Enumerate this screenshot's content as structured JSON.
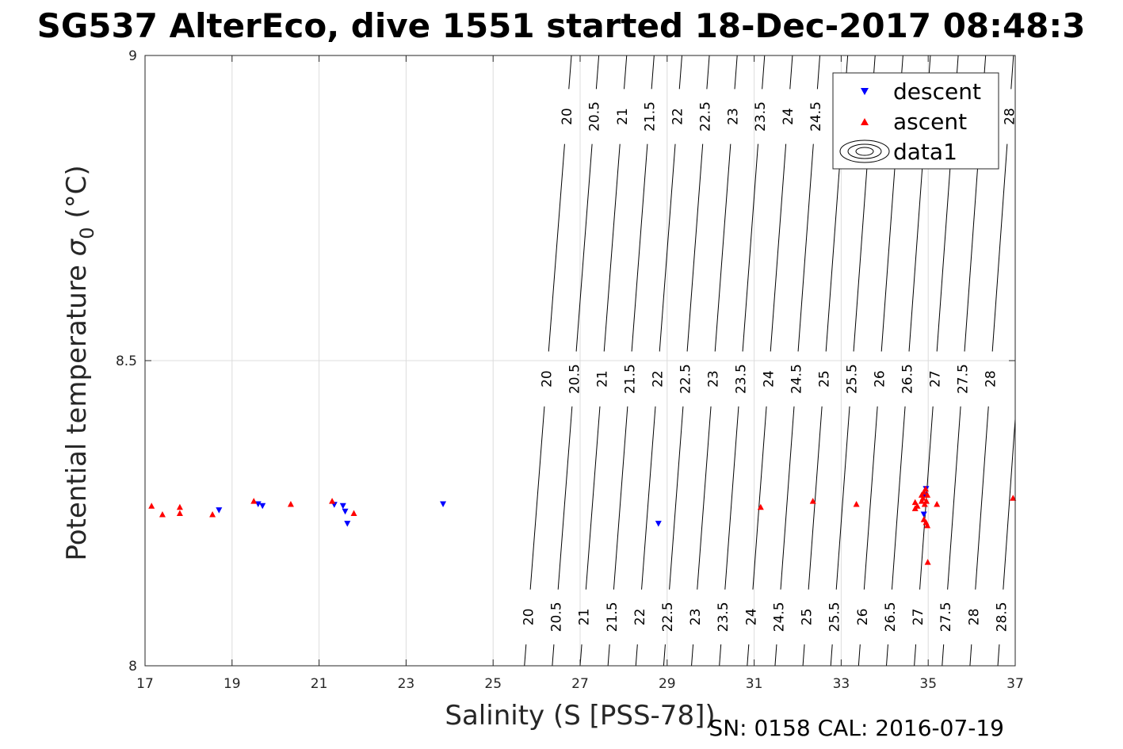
{
  "chart_data": {
    "type": "scatter",
    "title": "SG537 AlterEco, dive 1551 started 18-Dec-2017 08:48:3",
    "xlabel": "Salinity (S [PSS-78])",
    "ylabel": "Potential temperature σ0 (°C)",
    "ylabel_main": "Potential temperature ",
    "ylabel_sigma": "σ",
    "ylabel_sub": "0",
    "ylabel_unit": " (°C)",
    "xlim": [
      17,
      37
    ],
    "ylim": [
      8,
      9
    ],
    "xticks": [
      17,
      19,
      21,
      23,
      25,
      27,
      29,
      31,
      33,
      35,
      37
    ],
    "yticks": [
      8,
      8.5,
      9
    ],
    "ytick_labels": [
      "8",
      "8.5",
      "9"
    ],
    "grid": true,
    "legend_position": "top-right",
    "legend": [
      "descent",
      "ascent",
      "data1"
    ],
    "series": [
      {
        "name": "descent",
        "marker": "triangle-down",
        "color": "#0000ff",
        "points": [
          [
            18.7,
            8.255
          ],
          [
            19.6,
            8.265
          ],
          [
            19.7,
            8.262
          ],
          [
            21.35,
            8.264
          ],
          [
            21.55,
            8.262
          ],
          [
            21.6,
            8.253
          ],
          [
            21.65,
            8.233
          ],
          [
            23.85,
            8.265
          ],
          [
            28.8,
            8.233
          ],
          [
            34.9,
            8.248
          ],
          [
            34.92,
            8.28
          ],
          [
            34.95,
            8.29
          ]
        ]
      },
      {
        "name": "ascent",
        "marker": "triangle-up",
        "color": "#ff0000",
        "points": [
          [
            17.15,
            8.262
          ],
          [
            17.4,
            8.248
          ],
          [
            17.8,
            8.26
          ],
          [
            17.8,
            8.25
          ],
          [
            18.55,
            8.248
          ],
          [
            19.5,
            8.27
          ],
          [
            20.35,
            8.265
          ],
          [
            21.3,
            8.27
          ],
          [
            21.8,
            8.25
          ],
          [
            31.15,
            8.26
          ],
          [
            32.35,
            8.27
          ],
          [
            33.35,
            8.265
          ],
          [
            34.7,
            8.258
          ],
          [
            34.7,
            8.268
          ],
          [
            34.75,
            8.262
          ],
          [
            34.85,
            8.27
          ],
          [
            34.85,
            8.28
          ],
          [
            34.88,
            8.275
          ],
          [
            34.9,
            8.285
          ],
          [
            34.92,
            8.265
          ],
          [
            34.94,
            8.29
          ],
          [
            34.96,
            8.27
          ],
          [
            34.98,
            8.28
          ],
          [
            34.9,
            8.24
          ],
          [
            34.95,
            8.235
          ],
          [
            34.98,
            8.23
          ],
          [
            34.99,
            8.17
          ],
          [
            35.2,
            8.265
          ],
          [
            36.95,
            8.275
          ]
        ]
      }
    ],
    "contours": {
      "name": "data1",
      "levels": [
        "20",
        "20.5",
        "21",
        "21.5",
        "22",
        "22.5",
        "23",
        "23.5",
        "24",
        "24.5",
        "25",
        "25.5",
        "26",
        "26.5",
        "27",
        "27.5",
        "28",
        "28.5"
      ],
      "salinity_at_t8": [
        25.72,
        26.36,
        27.0,
        27.64,
        28.28,
        28.92,
        29.56,
        30.2,
        30.84,
        31.48,
        32.12,
        32.76,
        33.4,
        34.04,
        34.68,
        35.32,
        35.96,
        36.6
      ],
      "salinity_at_t9": [
        26.8,
        27.43,
        28.07,
        28.7,
        29.34,
        29.97,
        30.61,
        31.24,
        31.88,
        32.51,
        33.15,
        33.78,
        34.42,
        35.05,
        35.69,
        36.32,
        36.96,
        37.59
      ],
      "label_temperatures": [
        8.9,
        8.47,
        8.08
      ]
    },
    "footer": "SN: 0158  CAL: 2016-07-19"
  }
}
